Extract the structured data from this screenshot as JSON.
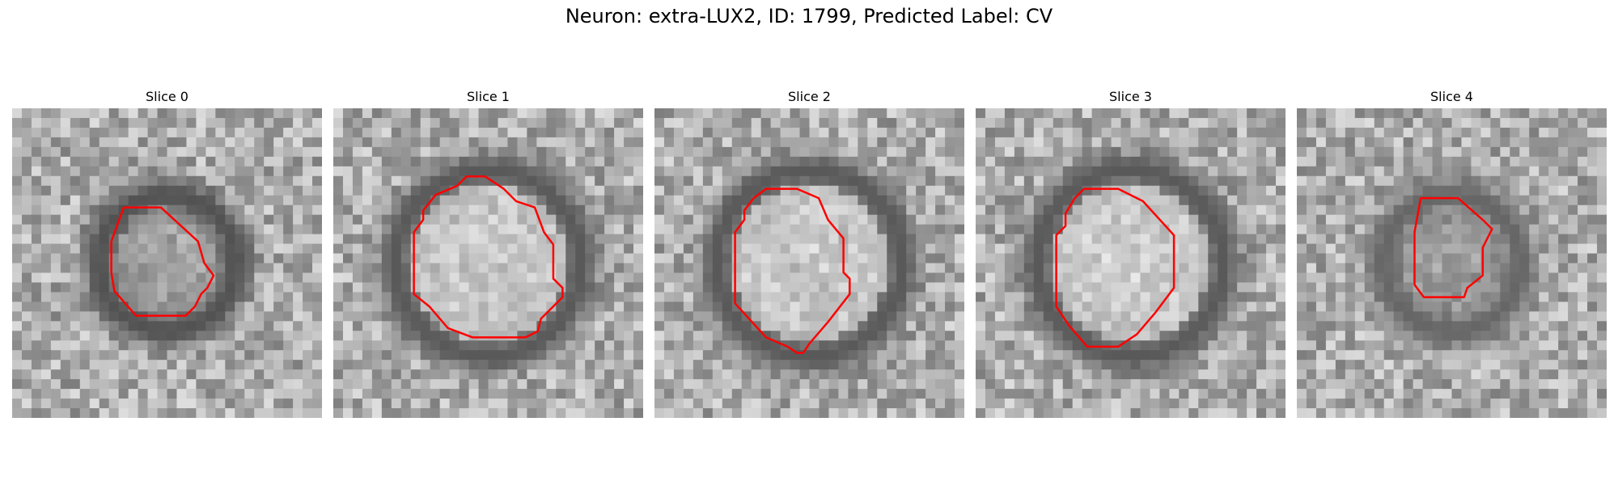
{
  "figure": {
    "title": "Neuron: extra-LUX2, ID: 1799, Predicted Label: CV"
  },
  "colors": {
    "contour": "#ff0000",
    "background": "#ffffff"
  },
  "panels": [
    {
      "title": "Slice 0",
      "ring_radius": 0.22,
      "ring_dark": 0.32,
      "center_bright": 0.6,
      "contour": [
        [
          0.36,
          0.32
        ],
        [
          0.48,
          0.32
        ],
        [
          0.6,
          0.43
        ],
        [
          0.62,
          0.5
        ],
        [
          0.65,
          0.54
        ],
        [
          0.63,
          0.58
        ],
        [
          0.61,
          0.6
        ],
        [
          0.59,
          0.64
        ],
        [
          0.56,
          0.67
        ],
        [
          0.48,
          0.67
        ],
        [
          0.4,
          0.67
        ],
        [
          0.33,
          0.59
        ],
        [
          0.32,
          0.53
        ],
        [
          0.32,
          0.43
        ]
      ]
    },
    {
      "title": "Slice 1",
      "ring_radius": 0.3,
      "ring_dark": 0.35,
      "center_bright": 0.85,
      "contour": [
        [
          0.4,
          0.25
        ],
        [
          0.43,
          0.22
        ],
        [
          0.49,
          0.22
        ],
        [
          0.55,
          0.26
        ],
        [
          0.59,
          0.3
        ],
        [
          0.65,
          0.32
        ],
        [
          0.68,
          0.4
        ],
        [
          0.71,
          0.44
        ],
        [
          0.71,
          0.55
        ],
        [
          0.74,
          0.58
        ],
        [
          0.74,
          0.61
        ],
        [
          0.67,
          0.68
        ],
        [
          0.66,
          0.72
        ],
        [
          0.62,
          0.74
        ],
        [
          0.45,
          0.74
        ],
        [
          0.37,
          0.71
        ],
        [
          0.31,
          0.64
        ],
        [
          0.26,
          0.6
        ],
        [
          0.26,
          0.4
        ],
        [
          0.29,
          0.36
        ],
        [
          0.29,
          0.33
        ],
        [
          0.33,
          0.28
        ]
      ]
    },
    {
      "title": "Slice 2",
      "ring_radius": 0.3,
      "ring_dark": 0.35,
      "center_bright": 0.85,
      "contour": [
        [
          0.32,
          0.29
        ],
        [
          0.36,
          0.26
        ],
        [
          0.46,
          0.26
        ],
        [
          0.53,
          0.29
        ],
        [
          0.56,
          0.36
        ],
        [
          0.61,
          0.42
        ],
        [
          0.61,
          0.53
        ],
        [
          0.63,
          0.55
        ],
        [
          0.63,
          0.6
        ],
        [
          0.56,
          0.69
        ],
        [
          0.5,
          0.76
        ],
        [
          0.48,
          0.79
        ],
        [
          0.46,
          0.79
        ],
        [
          0.43,
          0.77
        ],
        [
          0.36,
          0.74
        ],
        [
          0.26,
          0.63
        ],
        [
          0.26,
          0.4
        ],
        [
          0.29,
          0.36
        ],
        [
          0.29,
          0.33
        ]
      ]
    },
    {
      "title": "Slice 3",
      "ring_radius": 0.3,
      "ring_dark": 0.35,
      "center_bright": 0.88,
      "contour": [
        [
          0.32,
          0.29
        ],
        [
          0.35,
          0.26
        ],
        [
          0.46,
          0.26
        ],
        [
          0.54,
          0.3
        ],
        [
          0.64,
          0.41
        ],
        [
          0.64,
          0.58
        ],
        [
          0.58,
          0.66
        ],
        [
          0.52,
          0.73
        ],
        [
          0.46,
          0.77
        ],
        [
          0.4,
          0.77
        ],
        [
          0.36,
          0.77
        ],
        [
          0.3,
          0.7
        ],
        [
          0.26,
          0.64
        ],
        [
          0.26,
          0.41
        ],
        [
          0.29,
          0.38
        ],
        [
          0.29,
          0.34
        ]
      ]
    },
    {
      "title": "Slice 4",
      "ring_radius": 0.22,
      "ring_dark": 0.4,
      "center_bright": 0.55,
      "contour": [
        [
          0.4,
          0.29
        ],
        [
          0.44,
          0.29
        ],
        [
          0.52,
          0.29
        ],
        [
          0.6,
          0.36
        ],
        [
          0.63,
          0.39
        ],
        [
          0.61,
          0.43
        ],
        [
          0.6,
          0.45
        ],
        [
          0.6,
          0.54
        ],
        [
          0.55,
          0.58
        ],
        [
          0.54,
          0.61
        ],
        [
          0.5,
          0.61
        ],
        [
          0.45,
          0.61
        ],
        [
          0.41,
          0.61
        ],
        [
          0.38,
          0.57
        ],
        [
          0.38,
          0.4
        ]
      ]
    }
  ]
}
